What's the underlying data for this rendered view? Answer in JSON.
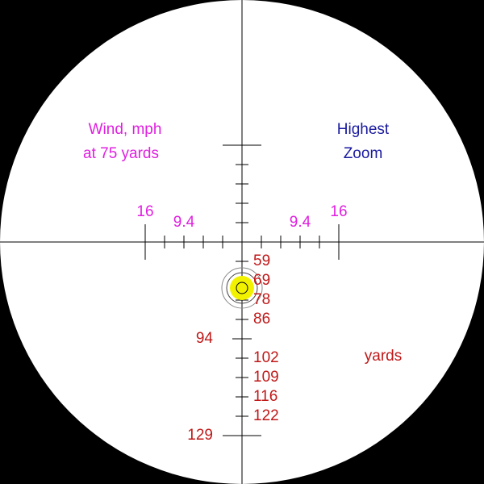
{
  "wind_label": [
    "Wind, mph",
    "at 75 yards"
  ],
  "zoom_label": [
    "Highest",
    "Zoom"
  ],
  "windage_labels": {
    "left": [
      "16",
      "9.4"
    ],
    "right": [
      "9.4",
      "16"
    ]
  },
  "range_labels": [
    "59",
    "69",
    "78",
    "86",
    "94",
    "102",
    "109",
    "116",
    "122",
    "129"
  ],
  "range_unit": "yards"
}
